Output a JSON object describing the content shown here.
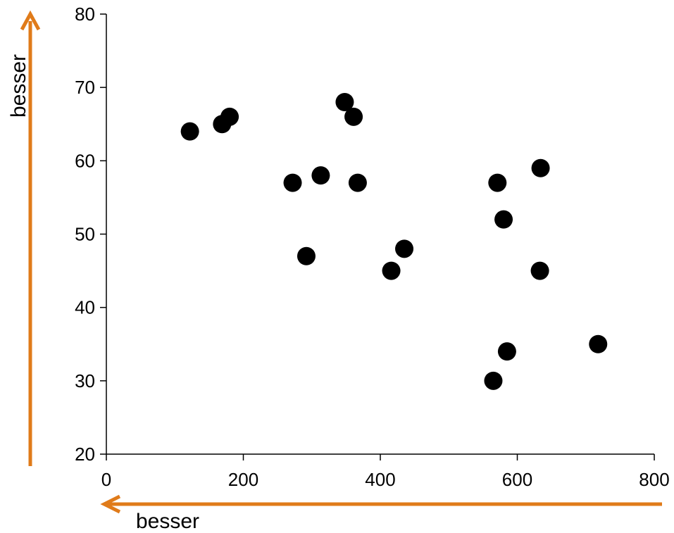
{
  "chart_data": {
    "type": "scatter",
    "title": "",
    "xlabel": "",
    "ylabel": "",
    "xlim": [
      0,
      800
    ],
    "ylim": [
      20,
      80
    ],
    "x_ticks": [
      0,
      200,
      400,
      600,
      800
    ],
    "y_ticks": [
      20,
      30,
      40,
      50,
      60,
      70,
      80
    ],
    "grid": false,
    "series": [
      {
        "points": [
          {
            "x": 122,
            "y": 64
          },
          {
            "x": 169,
            "y": 65
          },
          {
            "x": 180,
            "y": 66
          },
          {
            "x": 272,
            "y": 57
          },
          {
            "x": 292,
            "y": 47
          },
          {
            "x": 313,
            "y": 58
          },
          {
            "x": 348,
            "y": 68
          },
          {
            "x": 361,
            "y": 66
          },
          {
            "x": 367,
            "y": 57
          },
          {
            "x": 416,
            "y": 45
          },
          {
            "x": 435,
            "y": 48
          },
          {
            "x": 565,
            "y": 30
          },
          {
            "x": 571,
            "y": 57
          },
          {
            "x": 580,
            "y": 52
          },
          {
            "x": 585,
            "y": 34
          },
          {
            "x": 633,
            "y": 45
          },
          {
            "x": 634,
            "y": 59
          },
          {
            "x": 718,
            "y": 35
          }
        ]
      }
    ],
    "annotations": {
      "x_arrow_label": "besser",
      "y_arrow_label": "besser",
      "arrow_color": "#E07B1A",
      "point_color": "#000000"
    }
  }
}
